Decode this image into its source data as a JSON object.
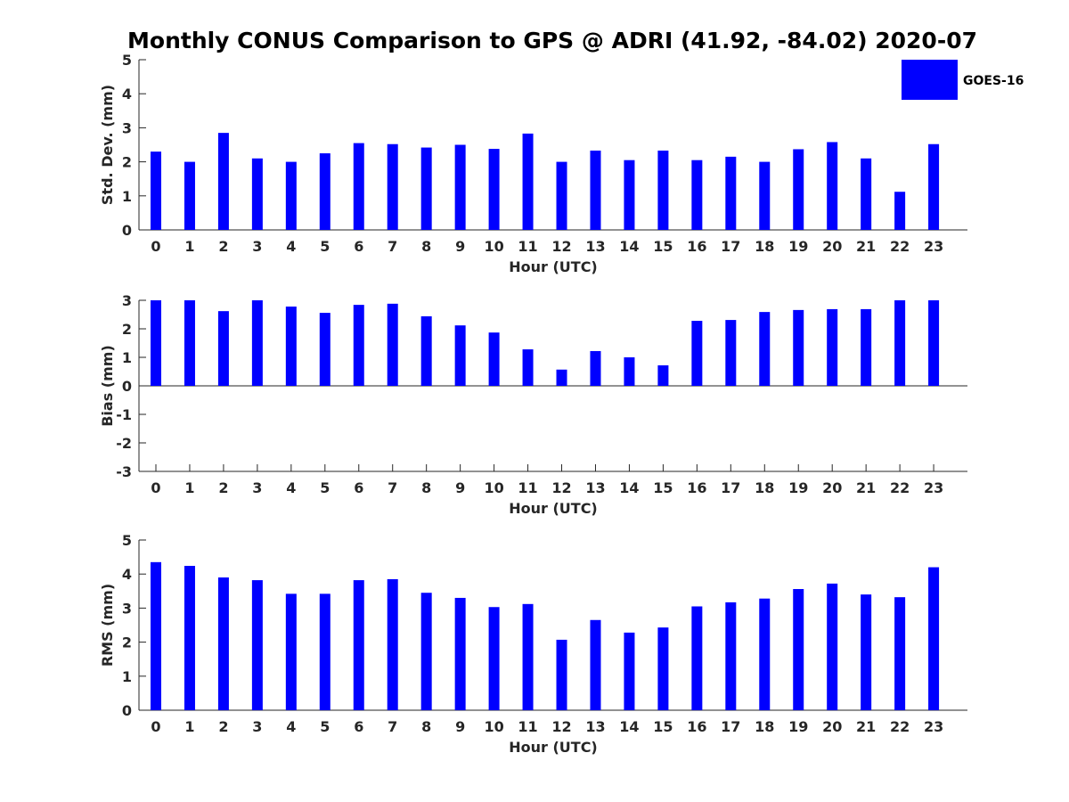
{
  "title": "Monthly CONUS Comparison to GPS @ ADRI (41.92, -84.02) 2020-07",
  "legend": {
    "label": "GOES-16",
    "color": "#0000ff"
  },
  "chart_data": [
    {
      "type": "bar",
      "xlabel": "Hour (UTC)",
      "ylabel": "Std. Dev. (mm)",
      "ylim": [
        0,
        5
      ],
      "yticks": [
        0,
        1,
        2,
        3,
        4,
        5
      ],
      "categories": [
        "0",
        "1",
        "2",
        "3",
        "4",
        "5",
        "6",
        "7",
        "8",
        "9",
        "10",
        "11",
        "12",
        "13",
        "14",
        "15",
        "16",
        "17",
        "18",
        "19",
        "20",
        "21",
        "22",
        "23"
      ],
      "series": [
        {
          "name": "GOES-16",
          "values": [
            2.3,
            2.0,
            2.85,
            2.1,
            2.0,
            2.25,
            2.55,
            2.52,
            2.42,
            2.5,
            2.38,
            2.83,
            2.0,
            2.33,
            2.05,
            2.33,
            2.05,
            2.15,
            2.0,
            2.37,
            2.58,
            2.1,
            1.12,
            2.52
          ]
        }
      ]
    },
    {
      "type": "bar",
      "xlabel": "Hour (UTC)",
      "ylabel": "Bias (mm)",
      "ylim": [
        -3,
        3
      ],
      "yticks": [
        -3,
        -2,
        -1,
        0,
        1,
        2,
        3
      ],
      "categories": [
        "0",
        "1",
        "2",
        "3",
        "4",
        "5",
        "6",
        "7",
        "8",
        "9",
        "10",
        "11",
        "12",
        "13",
        "14",
        "15",
        "16",
        "17",
        "18",
        "19",
        "20",
        "21",
        "22",
        "23"
      ],
      "series": [
        {
          "name": "GOES-16",
          "values": [
            3.0,
            3.0,
            2.62,
            3.0,
            2.78,
            2.56,
            2.84,
            2.88,
            2.44,
            2.12,
            1.87,
            1.28,
            0.57,
            1.22,
            1.0,
            0.72,
            2.28,
            2.31,
            2.59,
            2.66,
            2.69,
            2.69,
            3.0,
            3.0
          ]
        }
      ]
    },
    {
      "type": "bar",
      "xlabel": "Hour (UTC)",
      "ylabel": "RMS (mm)",
      "ylim": [
        0,
        5
      ],
      "yticks": [
        0,
        1,
        2,
        3,
        4,
        5
      ],
      "categories": [
        "0",
        "1",
        "2",
        "3",
        "4",
        "5",
        "6",
        "7",
        "8",
        "9",
        "10",
        "11",
        "12",
        "13",
        "14",
        "15",
        "16",
        "17",
        "18",
        "19",
        "20",
        "21",
        "22",
        "23"
      ],
      "series": [
        {
          "name": "GOES-16",
          "values": [
            4.35,
            4.24,
            3.9,
            3.82,
            3.42,
            3.42,
            3.82,
            3.85,
            3.45,
            3.3,
            3.03,
            3.12,
            2.07,
            2.65,
            2.28,
            2.43,
            3.05,
            3.17,
            3.28,
            3.56,
            3.72,
            3.4,
            3.32,
            4.2
          ]
        }
      ]
    }
  ]
}
